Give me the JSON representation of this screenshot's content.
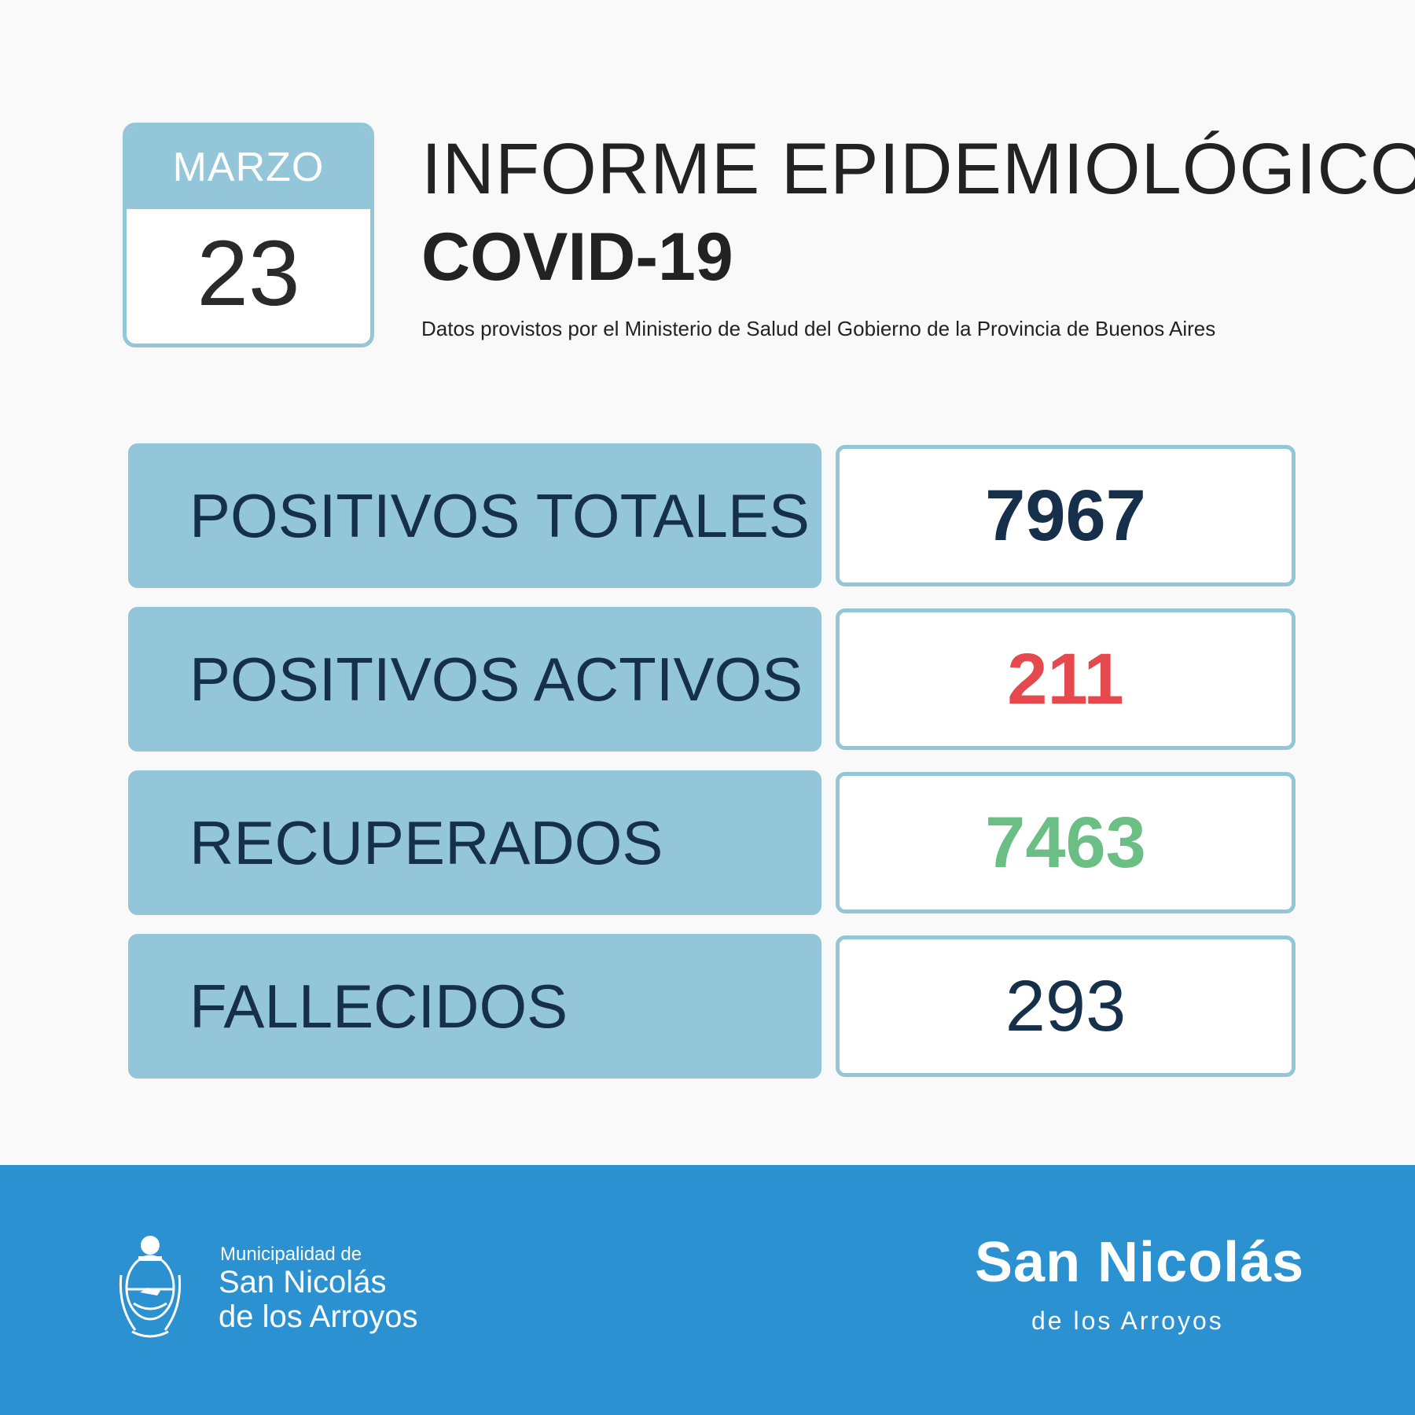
{
  "date": {
    "month": "MARZO",
    "day": "23"
  },
  "header": {
    "title": "INFORME EPIDEMIOLÓGICO",
    "subtitle": "COVID-19",
    "source": "Datos provistos por el Ministerio de Salud del Gobierno de la Provincia de Buenos Aires"
  },
  "stats": [
    {
      "label": "POSITIVOS TOTALES",
      "value": "7967",
      "color": "#16304c"
    },
    {
      "label": "POSITIVOS ACTIVOS",
      "value": "211",
      "color": "#e5484d"
    },
    {
      "label": "RECUPERADOS",
      "value": "7463",
      "color": "#6cbf84"
    },
    {
      "label": "FALLECIDOS",
      "value": "293",
      "color": "#16304c"
    }
  ],
  "footer": {
    "municipality_small": "Municipalidad de",
    "municipality_line1": "San Nicolás",
    "municipality_line2": "de los Arroyos",
    "brand": "San Nicolás",
    "brand_sub": "de los Arroyos",
    "seal_icon": "coat-of-arms-icon"
  },
  "colors": {
    "accent": "#93c6d8",
    "footer": "#2b91d1",
    "dark_text": "#16304c"
  }
}
